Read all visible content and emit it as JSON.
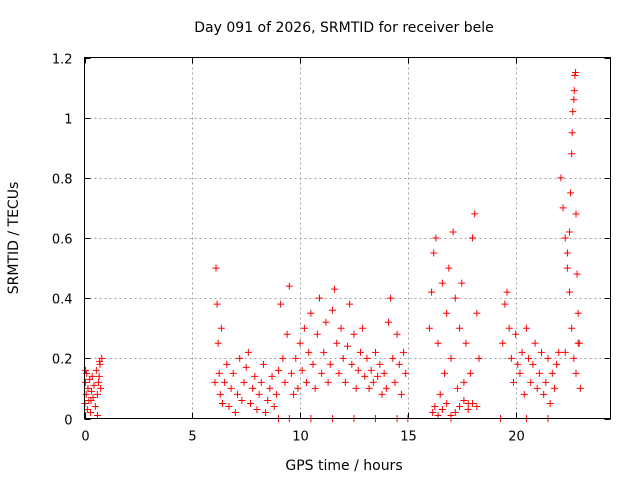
{
  "chart_data": {
    "type": "scatter",
    "title": "Day 091 of 2026, SRMTID for receiver bele",
    "xlabel": "GPS time / hours",
    "ylabel": "SRMTID / TECUs",
    "xlim": [
      0,
      24.4
    ],
    "ylim": [
      0,
      1.2
    ],
    "xticks": [
      0,
      5,
      10,
      15,
      20
    ],
    "yticks": [
      0,
      0.2,
      0.4,
      0.6,
      0.8,
      1,
      1.2
    ],
    "ytick_labels": [
      "0",
      "0.2",
      "0.4",
      "0.6",
      "0.8",
      "1",
      "1.2"
    ],
    "xtick_labels": [
      "0",
      "5",
      "10",
      "15",
      "20"
    ],
    "grid": true,
    "marker": "+",
    "series": [
      {
        "name": "SRMTID",
        "color": "#ff0000",
        "x": [
          0.02,
          0.05,
          0.08,
          0.1,
          0.13,
          0.16,
          0.2,
          0.24,
          0.28,
          0.32,
          0.36,
          0.4,
          0.44,
          0.5,
          0.55,
          0.6,
          0.65,
          0.7,
          0.75,
          0.8,
          0.05,
          0.3,
          0.6,
          0.68,
          0.72,
          6.05,
          6.1,
          6.15,
          6.2,
          6.25,
          6.3,
          6.35,
          6.4,
          6.5,
          6.6,
          6.7,
          6.8,
          6.9,
          7.0,
          7.1,
          7.2,
          7.3,
          7.4,
          7.5,
          7.6,
          7.7,
          7.8,
          7.9,
          8.0,
          8.1,
          8.2,
          8.3,
          8.4,
          8.5,
          8.6,
          8.7,
          8.8,
          8.9,
          9.0,
          9.1,
          9.2,
          9.3,
          9.4,
          9.5,
          9.6,
          9.7,
          9.8,
          9.9,
          10.0,
          10.1,
          10.2,
          10.3,
          10.4,
          10.5,
          10.6,
          10.7,
          10.8,
          10.9,
          11.0,
          11.1,
          11.2,
          11.3,
          11.4,
          11.5,
          11.6,
          11.7,
          11.8,
          11.9,
          12.0,
          12.1,
          12.2,
          12.3,
          12.4,
          12.5,
          12.6,
          12.7,
          12.8,
          12.9,
          13.0,
          13.1,
          13.2,
          13.3,
          13.4,
          13.5,
          13.6,
          13.7,
          13.8,
          13.9,
          14.0,
          14.1,
          14.2,
          14.3,
          14.4,
          14.5,
          14.6,
          14.7,
          14.8,
          14.9,
          16.0,
          16.1,
          16.2,
          16.3,
          16.4,
          16.5,
          16.6,
          16.7,
          16.8,
          16.9,
          17.0,
          17.1,
          17.2,
          17.3,
          17.4,
          17.5,
          17.6,
          17.7,
          17.8,
          17.9,
          18.0,
          18.1,
          18.2,
          18.3,
          16.15,
          16.25,
          16.4,
          16.6,
          16.8,
          17.0,
          17.2,
          17.4,
          17.6,
          17.8,
          18.0,
          18.2,
          19.4,
          19.5,
          19.6,
          19.7,
          19.8,
          19.9,
          20.0,
          20.1,
          20.2,
          20.3,
          20.4,
          20.5,
          20.6,
          20.7,
          20.8,
          20.9,
          21.0,
          21.1,
          21.2,
          21.3,
          21.4,
          21.5,
          21.6,
          21.7,
          21.8,
          21.9,
          22.0,
          22.1,
          22.2,
          22.3,
          22.4,
          22.5,
          22.6,
          22.7,
          22.8,
          22.9,
          23.0,
          22.3,
          22.4,
          22.5,
          22.55,
          22.6,
          22.62,
          22.65,
          22.7,
          22.72,
          22.75,
          22.78,
          22.8,
          22.85,
          22.9,
          22.95,
          9.0,
          9.5,
          10.5,
          11.5,
          12.5,
          13.5,
          14.5,
          15.0,
          17.0,
          19.3,
          20.5,
          21.5
        ],
        "y": [
          0.05,
          0.12,
          0.08,
          0.15,
          0.03,
          0.1,
          0.06,
          0.13,
          0.02,
          0.09,
          0.14,
          0.07,
          0.11,
          0.04,
          0.16,
          0.08,
          0.12,
          0.19,
          0.1,
          0.2,
          0.16,
          0.06,
          0.01,
          0.14,
          0.18,
          0.12,
          0.5,
          0.38,
          0.25,
          0.15,
          0.08,
          0.3,
          0.05,
          0.12,
          0.18,
          0.04,
          0.1,
          0.15,
          0.02,
          0.08,
          0.2,
          0.06,
          0.12,
          0.17,
          0.22,
          0.05,
          0.1,
          0.14,
          0.03,
          0.08,
          0.12,
          0.18,
          0.02,
          0.06,
          0.1,
          0.14,
          0.04,
          0.08,
          0.16,
          0.38,
          0.2,
          0.12,
          0.28,
          0.44,
          0.15,
          0.08,
          0.2,
          0.1,
          0.25,
          0.16,
          0.3,
          0.12,
          0.22,
          0.35,
          0.18,
          0.1,
          0.28,
          0.4,
          0.15,
          0.22,
          0.32,
          0.12,
          0.18,
          0.36,
          0.43,
          0.25,
          0.15,
          0.3,
          0.2,
          0.12,
          0.24,
          0.38,
          0.18,
          0.28,
          0.1,
          0.16,
          0.22,
          0.3,
          0.14,
          0.2,
          0.1,
          0.16,
          0.12,
          0.22,
          0.14,
          0.18,
          0.08,
          0.15,
          0.1,
          0.32,
          0.4,
          0.2,
          0.12,
          0.28,
          0.18,
          0.08,
          0.22,
          0.15,
          0.3,
          0.42,
          0.55,
          0.6,
          0.25,
          0.08,
          0.45,
          0.15,
          0.35,
          0.5,
          0.2,
          0.62,
          0.4,
          0.1,
          0.3,
          0.45,
          0.12,
          0.25,
          0.05,
          0.15,
          0.6,
          0.68,
          0.35,
          0.2,
          0.02,
          0.04,
          0.01,
          0.03,
          0.05,
          0.01,
          0.02,
          0.04,
          0.06,
          0.03,
          0.05,
          0.04,
          0.25,
          0.38,
          0.42,
          0.3,
          0.2,
          0.12,
          0.28,
          0.18,
          0.15,
          0.22,
          0.08,
          0.3,
          0.2,
          0.12,
          0.18,
          0.25,
          0.1,
          0.15,
          0.22,
          0.08,
          0.12,
          0.2,
          0.05,
          0.15,
          0.1,
          0.18,
          0.22,
          0.8,
          0.7,
          0.6,
          0.5,
          0.42,
          0.3,
          0.2,
          0.15,
          0.25,
          0.1,
          0.22,
          0.55,
          0.62,
          0.75,
          0.88,
          0.95,
          1.02,
          1.06,
          1.09,
          1.14,
          1.15,
          0.68,
          0.48,
          0.35,
          0.25,
          0.0,
          0.0,
          0.0,
          0.0,
          0.0,
          0.0,
          0.0,
          0.0,
          0.0,
          0.0,
          0.0,
          0.0
        ]
      }
    ]
  }
}
